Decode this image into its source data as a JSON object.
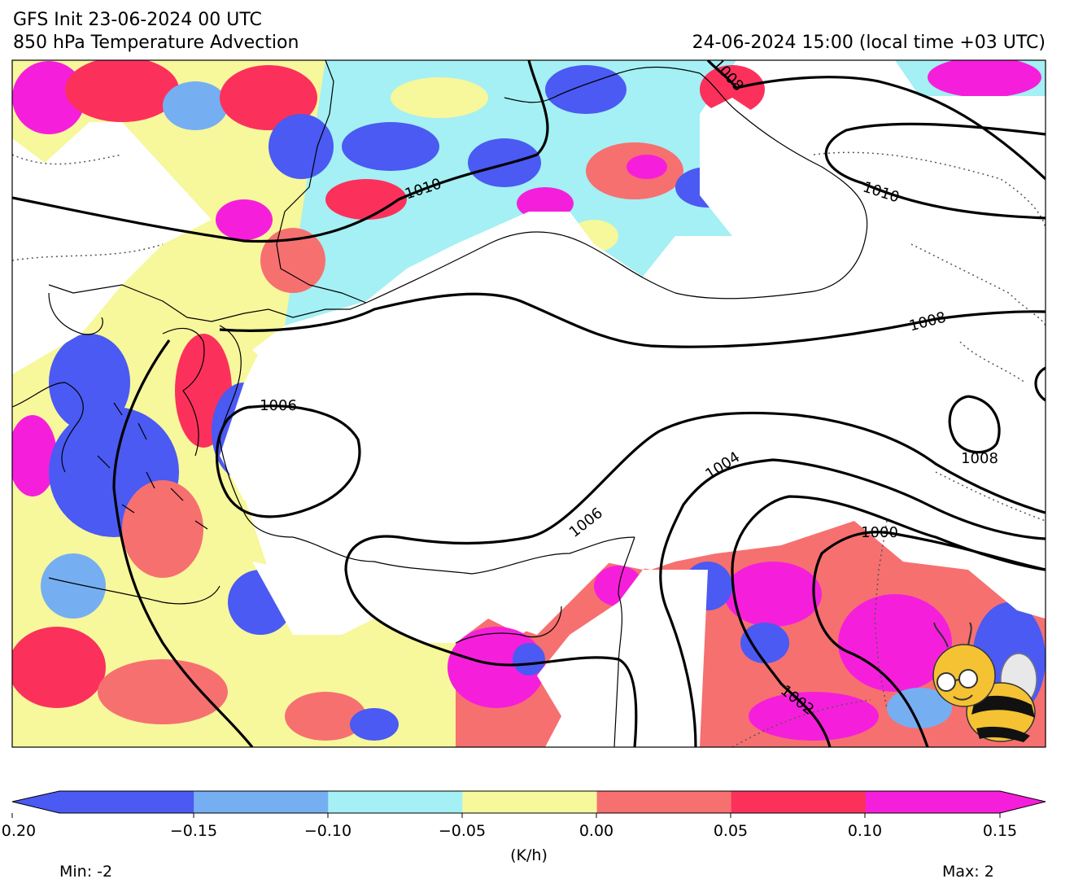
{
  "header": {
    "init": "GFS Init 23-06-2024 00 UTC",
    "field": "850 hPa Temperature Advection",
    "valid": "24-06-2024 15:00 (local time +03 UTC)"
  },
  "map": {
    "isobar_labels": [
      "1010",
      "1008",
      "1010",
      "1008",
      "1006",
      "1004",
      "1008",
      "1006",
      "1000",
      "1002"
    ]
  },
  "colorbar": {
    "units": "(K/h)",
    "ticks": [
      "−0.20",
      "−0.15",
      "−0.10",
      "−0.05",
      "0.00",
      "0.05",
      "0.10",
      "0.15"
    ],
    "colors": [
      "#4a5af2",
      "#76aef2",
      "#a4f0f4",
      "#f7f79c",
      "#f67070",
      "#fb315c",
      "#f51fdb"
    ],
    "extend": "both"
  },
  "stats": {
    "min": "Min: -2",
    "max": "Max: 2"
  }
}
